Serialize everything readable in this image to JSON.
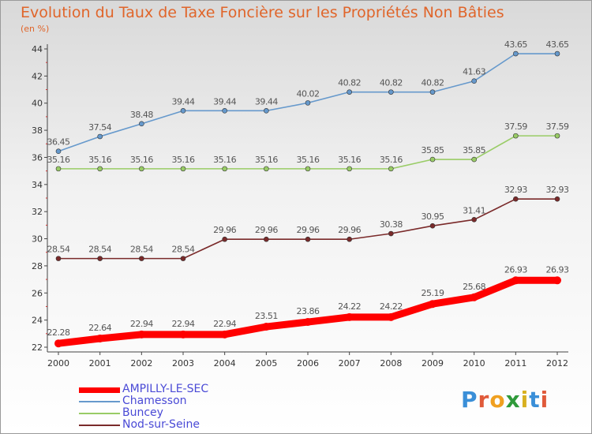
{
  "title": "Evolution du Taux de Taxe Foncière sur les Propriétés Non Bâties",
  "unit_label": "(en %)",
  "logo": "Proxiti",
  "chart_data": {
    "type": "line",
    "x": [
      "2000",
      "2001",
      "2002",
      "2003",
      "2004",
      "2005",
      "2006",
      "2007",
      "2008",
      "2009",
      "2010",
      "2011",
      "2012"
    ],
    "ylim": [
      22,
      44
    ],
    "yticks": [
      22,
      24,
      26,
      28,
      30,
      32,
      34,
      36,
      38,
      40,
      42,
      44
    ],
    "grid": false,
    "legend_position": "bottom-left",
    "series": [
      {
        "name": "AMPILLY-LE-SEC",
        "color": "#ff0000",
        "values": [
          22.28,
          22.64,
          22.94,
          22.94,
          22.94,
          23.51,
          23.86,
          24.22,
          24.22,
          25.19,
          25.68,
          26.93,
          26.93
        ],
        "labels": [
          "22.28",
          "22.64",
          "22.94",
          "22.94",
          "22.94",
          "23.51",
          "23.86",
          "24.22",
          "24.22",
          "25.19",
          "25.68",
          "26.93",
          "26.93"
        ]
      },
      {
        "name": "Chamesson",
        "color": "#6699cc",
        "values": [
          36.45,
          37.54,
          38.48,
          39.44,
          39.44,
          39.44,
          40.02,
          40.82,
          40.82,
          40.82,
          41.63,
          43.65,
          43.65
        ],
        "labels": [
          "36.45",
          "37.54",
          "38.48",
          "39.44",
          "39.44",
          "39.44",
          "40.02",
          "40.82",
          "40.82",
          "40.82",
          "41.63",
          "43.65",
          "43.65"
        ]
      },
      {
        "name": "Buncey",
        "color": "#99cc66",
        "values": [
          35.16,
          35.16,
          35.16,
          35.16,
          35.16,
          35.16,
          35.16,
          35.16,
          35.16,
          35.85,
          35.85,
          37.59,
          37.59
        ],
        "labels": [
          "35.16",
          "35.16",
          "35.16",
          "35.16",
          "35.16",
          "35.16",
          "35.16",
          "35.16",
          "35.16",
          "35.85",
          "35.85",
          "37.59",
          "37.59"
        ]
      },
      {
        "name": "Nod-sur-Seine",
        "color": "#7a2a2a",
        "values": [
          28.54,
          28.54,
          28.54,
          28.54,
          29.96,
          29.96,
          29.96,
          29.96,
          30.38,
          30.95,
          31.41,
          32.93,
          32.93
        ],
        "labels": [
          "28.54",
          "28.54",
          "28.54",
          "28.54",
          "29.96",
          "29.96",
          "29.96",
          "29.96",
          "30.38",
          "30.95",
          "31.41",
          "32.93",
          "32.93"
        ]
      }
    ]
  }
}
